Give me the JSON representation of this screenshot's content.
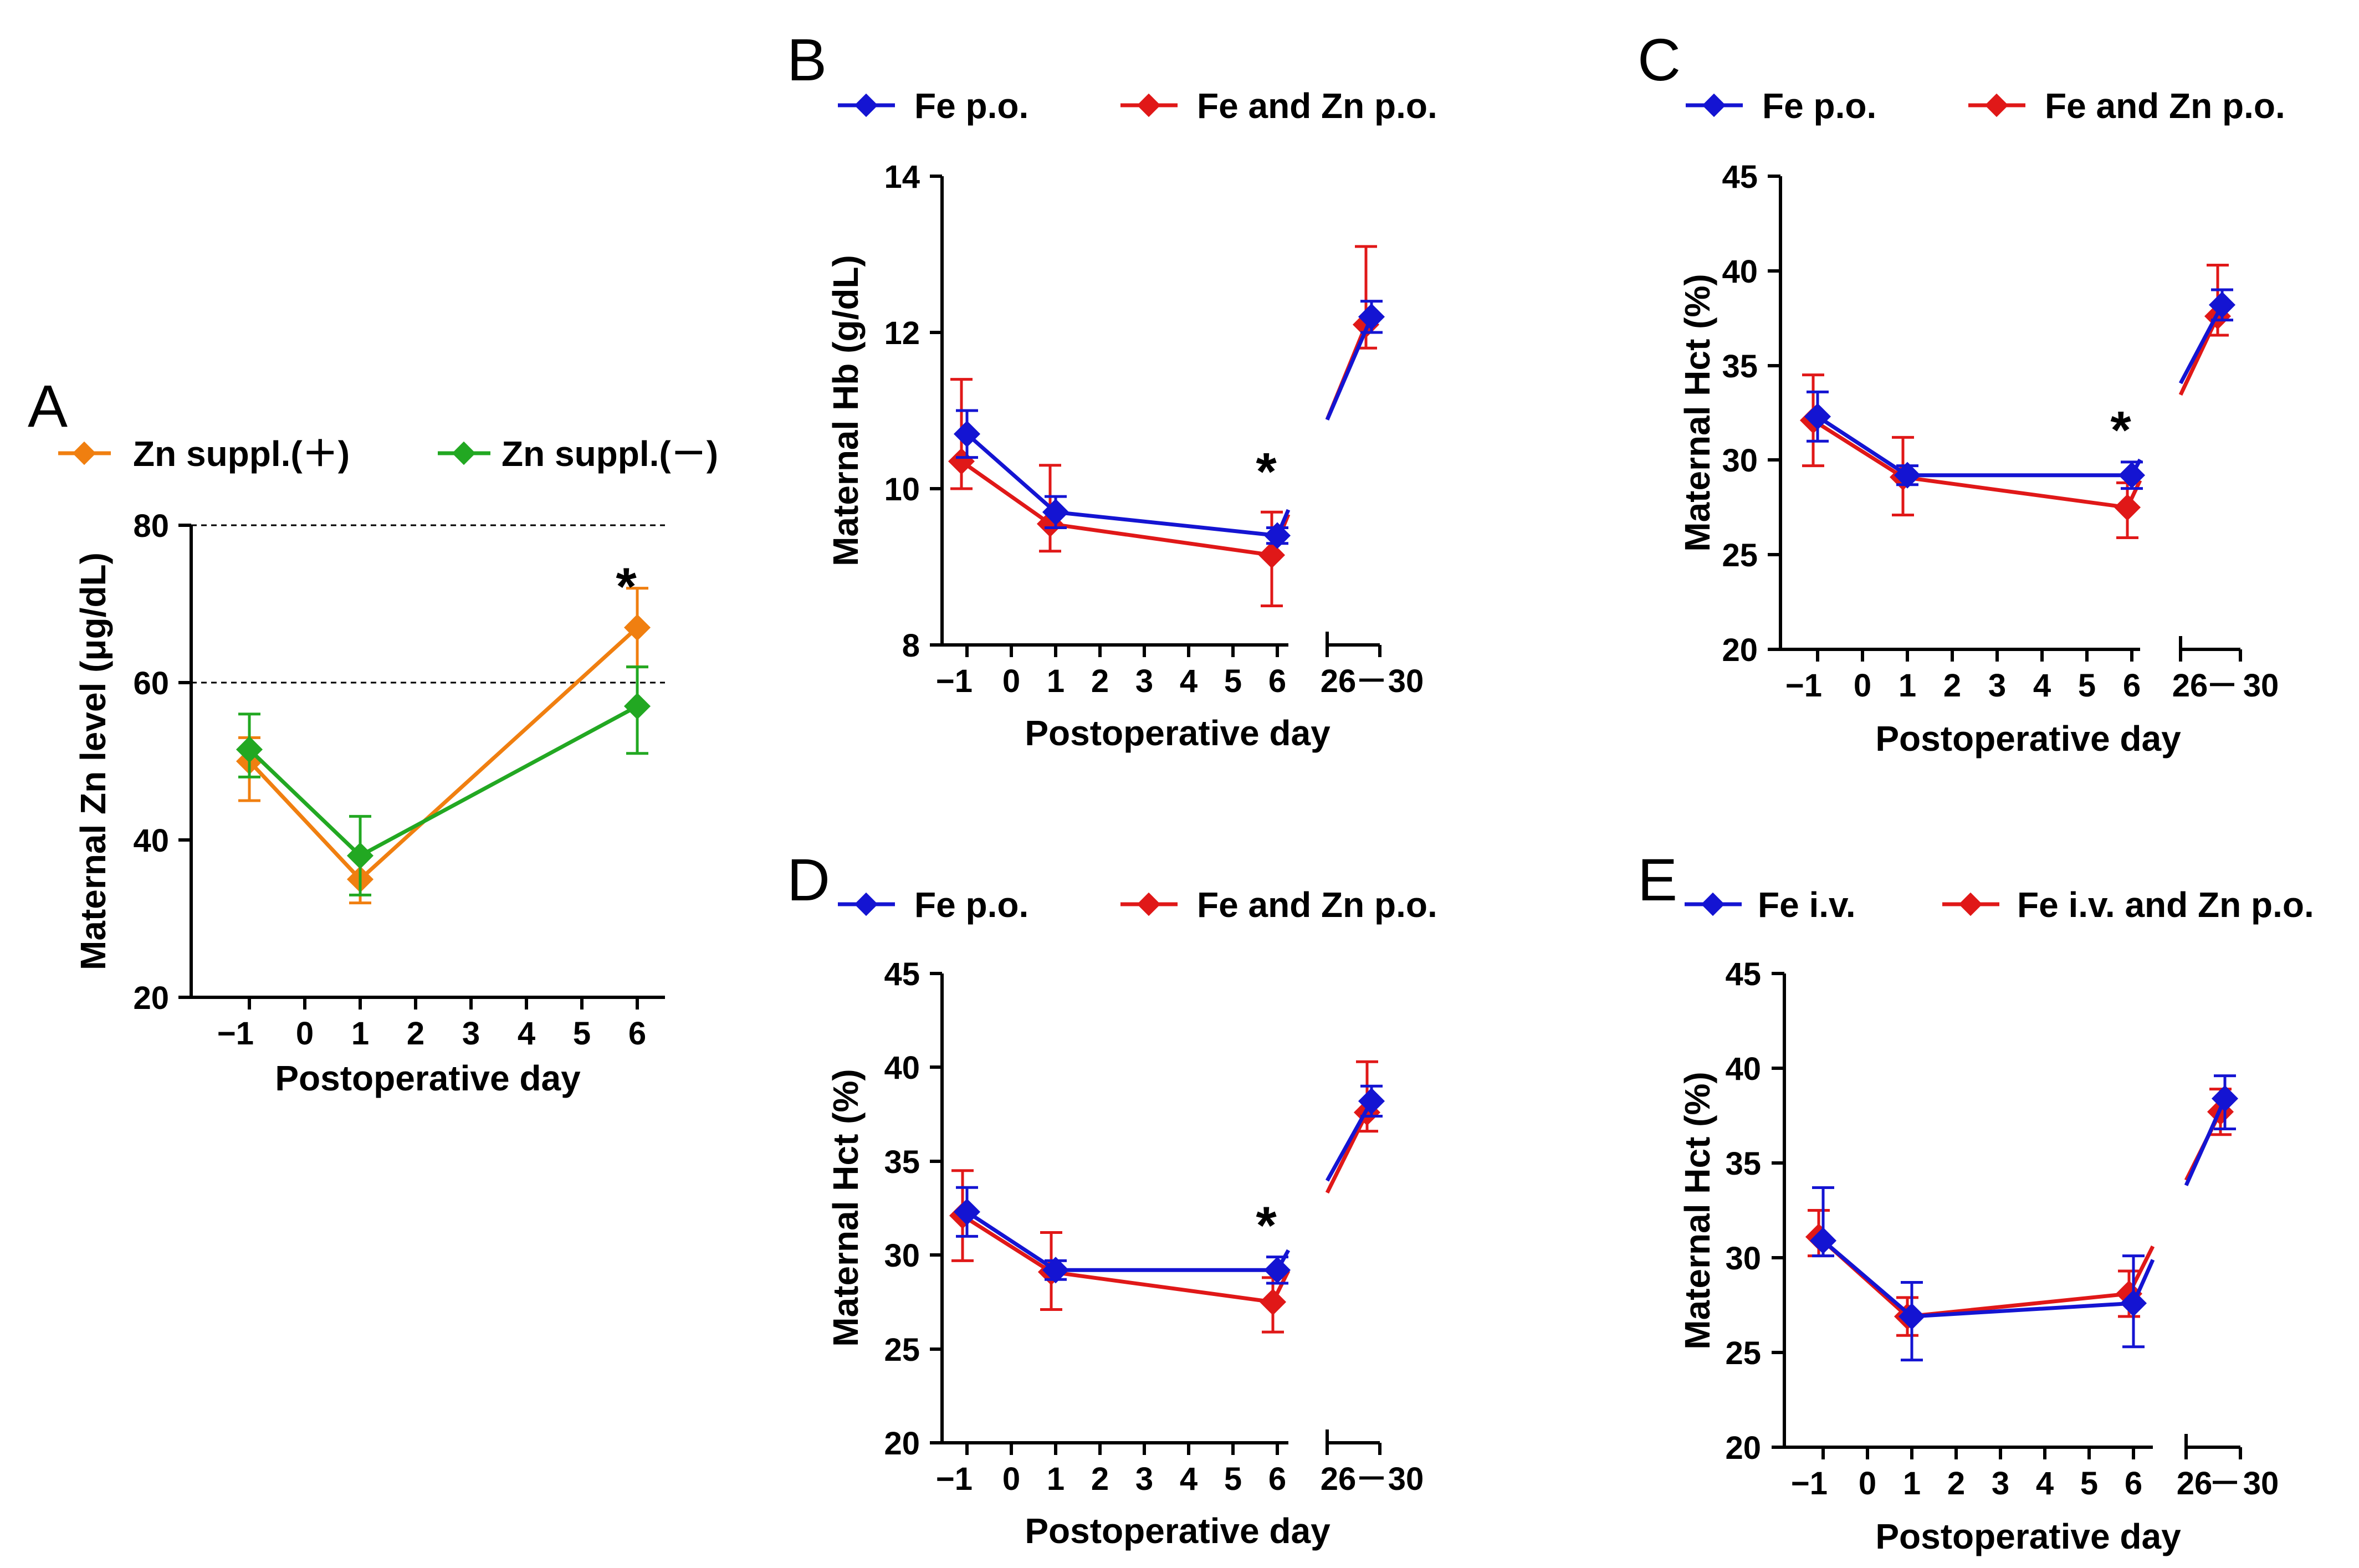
{
  "chart_data": [
    {
      "panel": "A",
      "type": "line",
      "xlabel": "Postoperative day",
      "ylabel": "Maternal Zn level (μg/dL)",
      "ylim": [
        20,
        80
      ],
      "yticks": [
        20,
        40,
        60,
        80
      ],
      "xticks": [
        "−1",
        "0",
        "1",
        "2",
        "3",
        "4",
        "5",
        "6"
      ],
      "reference_lines": [
        60,
        80
      ],
      "significance": [
        {
          "x": "6",
          "y": 72,
          "label": "*"
        }
      ],
      "series": [
        {
          "name": "Zn suppl.(＋)",
          "color": "#F07F10",
          "x": [
            "−1",
            "1",
            "6"
          ],
          "values": [
            50,
            35,
            67
          ],
          "err_low": [
            45,
            32,
            62
          ],
          "err_high": [
            53,
            38,
            72
          ]
        },
        {
          "name": "Zn suppl.(－)",
          "color": "#22A822",
          "x": [
            "−1",
            "1",
            "6"
          ],
          "values": [
            51.5,
            38,
            57
          ],
          "err_low": [
            48,
            33,
            51
          ],
          "err_high": [
            56,
            43,
            62
          ]
        }
      ]
    },
    {
      "panel": "B",
      "type": "line",
      "xlabel": "Postoperative day",
      "ylabel": "Maternal Hb (g/dL)",
      "ylim": [
        8,
        14
      ],
      "yticks": [
        8,
        10,
        12,
        14
      ],
      "xticks": [
        "−1",
        "0",
        "1",
        "2",
        "3",
        "4",
        "5",
        "6",
        "26",
        "－",
        "30"
      ],
      "significance": [
        {
          "x": "6",
          "y": 10.2,
          "label": "*"
        }
      ],
      "series": [
        {
          "name": "Fe p.o.",
          "color": "#1414D2",
          "x": [
            "−1",
            "1",
            "6",
            "26−30"
          ],
          "values": [
            10.7,
            9.7,
            9.4,
            12.2
          ],
          "err_low": [
            10.4,
            9.5,
            9.3,
            12.0
          ],
          "err_high": [
            11.0,
            9.9,
            9.5,
            12.4
          ]
        },
        {
          "name": "Fe and Zn p.o.",
          "color": "#E01818",
          "x": [
            "−1",
            "1",
            "6",
            "26−30"
          ],
          "values": [
            10.35,
            9.55,
            9.15,
            12.1
          ],
          "err_low": [
            10.0,
            9.2,
            8.5,
            11.8
          ],
          "err_high": [
            11.4,
            10.3,
            9.7,
            13.1
          ]
        }
      ]
    },
    {
      "panel": "C",
      "type": "line",
      "xlabel": "Postoperative day",
      "ylabel": "Maternal Hct (%)",
      "ylim": [
        20,
        45
      ],
      "yticks": [
        20,
        25,
        30,
        35,
        40,
        45
      ],
      "xticks": [
        "−1",
        "0",
        "1",
        "2",
        "3",
        "4",
        "5",
        "6",
        "26",
        "－",
        "30"
      ],
      "significance": [
        {
          "x": "6",
          "y": 31.5,
          "label": "*"
        }
      ],
      "series": [
        {
          "name": "Fe p.o.",
          "color": "#1414D2",
          "x": [
            "−1",
            "1",
            "6",
            "26−30"
          ],
          "values": [
            32.3,
            29.2,
            29.2,
            38.2
          ],
          "err_low": [
            31.0,
            28.7,
            28.5,
            37.4
          ],
          "err_high": [
            33.6,
            29.7,
            29.9,
            39.0
          ]
        },
        {
          "name": "Fe and Zn p.o.",
          "color": "#E01818",
          "x": [
            "−1",
            "1",
            "6",
            "26−30"
          ],
          "values": [
            32.1,
            29.1,
            27.5,
            37.6
          ],
          "err_low": [
            29.7,
            27.1,
            25.9,
            36.6
          ],
          "err_high": [
            34.5,
            31.2,
            28.8,
            40.3
          ]
        }
      ]
    },
    {
      "panel": "D",
      "type": "line",
      "xlabel": "Postoperative day",
      "ylabel": "Maternal Hct (%)",
      "ylim": [
        20,
        45
      ],
      "yticks": [
        20,
        25,
        30,
        35,
        40,
        45
      ],
      "xticks": [
        "−1",
        "0",
        "1",
        "2",
        "3",
        "4",
        "5",
        "6",
        "26",
        "－",
        "30"
      ],
      "significance": [
        {
          "x": "6",
          "y": 31.5,
          "label": "*"
        }
      ],
      "series": [
        {
          "name": "Fe p.o.",
          "color": "#1414D2",
          "x": [
            "−1",
            "1",
            "6",
            "26−30"
          ],
          "values": [
            32.3,
            29.2,
            29.2,
            38.2
          ],
          "err_low": [
            31.0,
            28.7,
            28.5,
            37.4
          ],
          "err_high": [
            33.6,
            29.7,
            29.9,
            39.0
          ]
        },
        {
          "name": "Fe and Zn p.o.",
          "color": "#E01818",
          "x": [
            "−1",
            "1",
            "6",
            "26−30"
          ],
          "values": [
            32.1,
            29.1,
            27.5,
            37.6
          ],
          "err_low": [
            29.7,
            27.1,
            25.9,
            36.6
          ],
          "err_high": [
            34.5,
            31.2,
            28.8,
            40.3
          ]
        }
      ]
    },
    {
      "panel": "E",
      "type": "line",
      "xlabel": "Postoperative day",
      "ylabel": "Maternal Hct (%)",
      "ylim": [
        20,
        45
      ],
      "yticks": [
        20,
        25,
        30,
        35,
        40,
        45
      ],
      "xticks": [
        "−1",
        "0",
        "1",
        "2",
        "3",
        "4",
        "5",
        "6",
        "26",
        "－",
        "30"
      ],
      "significance": [],
      "series": [
        {
          "name": "Fe i.v.",
          "color": "#1414D2",
          "x": [
            "−1",
            "1",
            "6",
            "26−30"
          ],
          "values": [
            30.9,
            26.9,
            27.6,
            38.4
          ],
          "err_low": [
            30.1,
            24.6,
            25.3,
            36.8
          ],
          "err_high": [
            33.7,
            28.7,
            30.1,
            39.6
          ]
        },
        {
          "name": "Fe i.v. and Zn p.o.",
          "color": "#E01818",
          "x": [
            "−1",
            "1",
            "6",
            "26−30"
          ],
          "values": [
            31.1,
            26.9,
            28.1,
            37.7
          ],
          "err_low": [
            30.1,
            25.9,
            26.9,
            36.5
          ],
          "err_high": [
            32.5,
            27.9,
            29.3,
            38.9
          ]
        }
      ]
    }
  ]
}
